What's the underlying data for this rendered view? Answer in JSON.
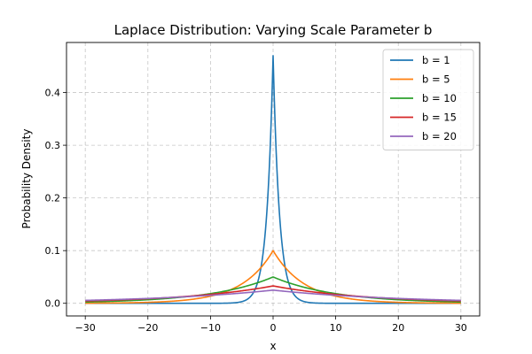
{
  "chart_data": {
    "type": "line",
    "title": "Laplace Distribution: Varying Scale Parameter b",
    "xlabel": "x",
    "ylabel": "Probability Density",
    "xlim": [
      -33,
      33
    ],
    "ylim": [
      -0.024,
      0.495
    ],
    "xticks": [
      -30,
      -20,
      -10,
      0,
      10,
      20,
      30
    ],
    "xtick_labels": [
      "−30",
      "−20",
      "−10",
      "0",
      "10",
      "20",
      "30"
    ],
    "yticks": [
      0.0,
      0.1,
      0.2,
      0.3,
      0.4
    ],
    "ytick_labels": [
      "0.0",
      "0.1",
      "0.2",
      "0.3",
      "0.4"
    ],
    "grid": true,
    "legend_position": "top-right",
    "distribution": "laplace",
    "x_range": [
      -30,
      30
    ],
    "series": [
      {
        "name": "b = 1",
        "scale": 1,
        "peak": 0.47,
        "color": "#1f77b4"
      },
      {
        "name": "b = 5",
        "scale": 5,
        "peak": 0.1,
        "color": "#ff7f0e"
      },
      {
        "name": "b = 10",
        "scale": 10,
        "peak": 0.05,
        "color": "#2ca02c"
      },
      {
        "name": "b = 15",
        "scale": 15,
        "peak": 0.033,
        "color": "#d62728"
      },
      {
        "name": "b = 20",
        "scale": 20,
        "peak": 0.025,
        "color": "#9467bd"
      }
    ]
  }
}
